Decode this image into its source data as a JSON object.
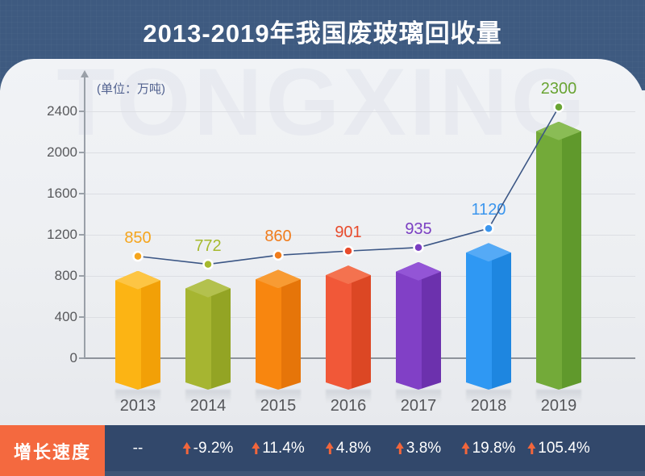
{
  "header": {
    "title": "2013-2019年我国废玻璃回收量"
  },
  "chart": {
    "unit_label": "(单位：万吨)",
    "watermark": "TONGXING",
    "y_axis_ticks": [
      2400,
      2000,
      1600,
      1200,
      800,
      400,
      0
    ]
  },
  "chart_data": {
    "type": "bar",
    "title": "2013-2019年我国废玻璃回收量",
    "unit": "万吨",
    "categories": [
      "2013",
      "2014",
      "2015",
      "2016",
      "2017",
      "2018",
      "2019"
    ],
    "series": [
      {
        "name": "废玻璃回收量",
        "values": [
          850,
          772,
          860,
          901,
          935,
          1120,
          2300
        ]
      },
      {
        "name": "增长速度",
        "values": [
          "--",
          "-9.2%",
          "11.4%",
          "4.8%",
          "3.8%",
          "19.8%",
          "105.4%"
        ]
      }
    ],
    "ylim": [
      0,
      2400
    ],
    "grid": true,
    "line_color": "#3b5685",
    "bars": [
      {
        "year": "2013",
        "value": 850,
        "growth": "--",
        "front": "#fcb414",
        "side": "#f2a007",
        "top": "#fdc544",
        "label_color": "#f5a51d"
      },
      {
        "year": "2014",
        "value": 772,
        "growth": "-9.2%",
        "front": "#a6b531",
        "side": "#93a424",
        "top": "#b3c14e",
        "label_color": "#a6b92e"
      },
      {
        "year": "2015",
        "value": 860,
        "growth": "11.4%",
        "front": "#f8860f",
        "side": "#e67509",
        "top": "#f89b33",
        "label_color": "#f07c1c"
      },
      {
        "year": "2016",
        "value": 901,
        "growth": "4.8%",
        "front": "#f15838",
        "side": "#dc4724",
        "top": "#f4724f",
        "label_color": "#e84b2c"
      },
      {
        "year": "2017",
        "value": 935,
        "growth": "3.8%",
        "front": "#8140c6",
        "side": "#6c31ad",
        "top": "#9355d6",
        "label_color": "#7a3ec2"
      },
      {
        "year": "2018",
        "value": 1120,
        "growth": "19.8%",
        "front": "#2f98f3",
        "side": "#1e86e0",
        "top": "#55aaf6",
        "label_color": "#3b96ee"
      },
      {
        "year": "2019",
        "value": 2300,
        "growth": "105.4%",
        "front": "#73aa39",
        "side": "#60992c",
        "top": "#8abc55",
        "label_color": "#69a433"
      }
    ]
  },
  "footer": {
    "label": "增长速度",
    "no_growth_placeholder": "--",
    "arrow_color": "#f2663c"
  },
  "colors": {
    "header_bg": "#3e5a80",
    "footer_bg": "#32486b",
    "footer_label_bg": "#f4693f",
    "unit_label": "#51618f",
    "axis": "#9aa0a8"
  }
}
